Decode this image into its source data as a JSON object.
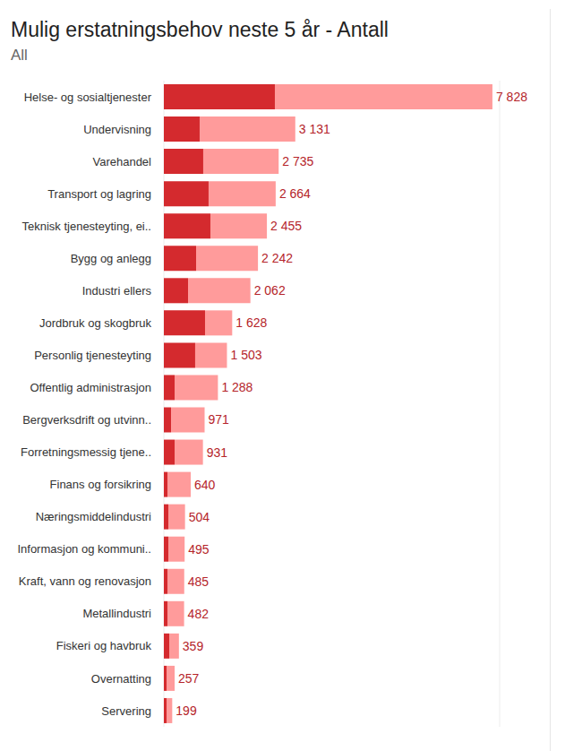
{
  "chart_data": {
    "type": "bar",
    "title": "Mulig erstatningsbehov neste 5 år - Antall",
    "subtitle": "All",
    "orientation": "horizontal",
    "stacked": true,
    "grid": true,
    "tick_labels": "y",
    "categories": [
      "Helse- og sosialtjenester",
      "Undervisning",
      "Varehandel",
      "Transport og lagring",
      "Teknisk tjenesteyting, ei..",
      "Bygg og anlegg",
      "Industri ellers",
      "Jordbruk og skogbruk",
      "Personlig tjenesteyting",
      "Offentlig administrasjon",
      "Bergverksdrift og utvinn..",
      "Forretningsmessig tjene..",
      "Finans og forsikring",
      "Næringsmiddelindustri",
      "Informasjon og kommuni..",
      "Kraft, vann og renovasjon",
      "Metallindustri",
      "Fiskeri og havbruk",
      "Overnatting",
      "Servering"
    ],
    "series": [
      {
        "color": "#d42a2e",
        "values": [
          2645,
          853,
          938,
          1066,
          1109,
          768,
          576,
          981,
          746,
          256,
          171,
          256,
          85,
          107,
          107,
          85,
          85,
          128,
          64,
          64
        ]
      },
      {
        "color": "#ff9b9b",
        "values": [
          5183,
          2278,
          1797,
          1598,
          1346,
          1474,
          1486,
          647,
          757,
          1032,
          800,
          675,
          555,
          397,
          388,
          400,
          397,
          231,
          193,
          135
        ]
      }
    ],
    "totals": [
      7828,
      3131,
      2735,
      2664,
      2455,
      2242,
      2062,
      1628,
      1503,
      1288,
      971,
      931,
      640,
      504,
      495,
      485,
      482,
      359,
      257,
      199
    ],
    "total_labels": [
      "7 828",
      "3 131",
      "2 735",
      "2 664",
      "2 455",
      "2 242",
      "2 062",
      "1 628",
      "1 503",
      "1 288",
      "971",
      "931",
      "640",
      "504",
      "495",
      "485",
      "482",
      "359",
      "257",
      "199"
    ],
    "xlim": [
      0,
      8000
    ],
    "xticks": [
      0,
      4000,
      8000
    ]
  }
}
